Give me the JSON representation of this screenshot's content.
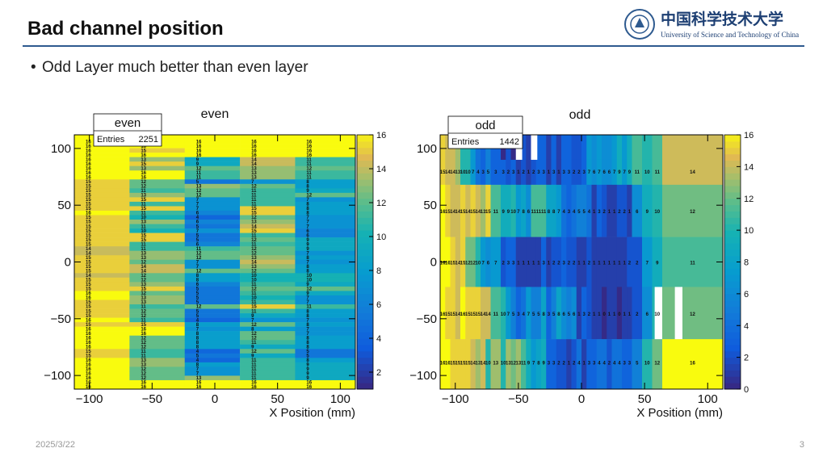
{
  "slide": {
    "title": "Bad channel position",
    "bullet": "Odd Layer much better than even layer",
    "date": "2025/3/22",
    "page_number": "3"
  },
  "logo": {
    "chinese": "中国科学技术大学",
    "english": "University of Science and Technology of China"
  },
  "colors": {
    "accent": "#2e5a8f",
    "bad": "#ffffff"
  },
  "chart_data": [
    {
      "type": "heatmap",
      "title": "even",
      "stats_title": "even",
      "entries_label": "Entries",
      "entries": "2251",
      "xlabel": "X Position (mm)",
      "ylabel": "",
      "xlim": [
        -112,
        112
      ],
      "ylim": [
        -112,
        112
      ],
      "xticks": [
        -100,
        -50,
        0,
        50,
        100
      ],
      "yticks": [
        -100,
        -50,
        0,
        50,
        100
      ],
      "xtick_labels": [
        "−100",
        "−50",
        "0",
        "50",
        "100"
      ],
      "ytick_labels": [
        "−100",
        "−50",
        "0",
        "50",
        "100"
      ],
      "zlim": [
        1,
        16
      ],
      "zticks": [
        2,
        4,
        6,
        8,
        10,
        12,
        14,
        16
      ],
      "columns": [
        {
          "x_range": [
            -112,
            -68
          ],
          "values": [
            16,
            16,
            16,
            16,
            16,
            16,
            16,
            16,
            16,
            16,
            15,
            15,
            15,
            15,
            15,
            15,
            15,
            16,
            15,
            15,
            15,
            15,
            15,
            15,
            15,
            14,
            14,
            15,
            15,
            15,
            15,
            14,
            15,
            15,
            15,
            16,
            16,
            15,
            15,
            15,
            15,
            16,
            15,
            16,
            16,
            16,
            16,
            16,
            15,
            15,
            16,
            16,
            16,
            16,
            16,
            16,
            16
          ]
        },
        {
          "x_range": [
            -68,
            -24
          ],
          "values": [
            16,
            16,
            16,
            15,
            16,
            13,
            15,
            13,
            16,
            16,
            12,
            12,
            11,
            13,
            15,
            11,
            15,
            11,
            10,
            13,
            11,
            10,
            15,
            15,
            11,
            11,
            13,
            13,
            12,
            14,
            14,
            12,
            12,
            13,
            15,
            12,
            13,
            13,
            11,
            12,
            12,
            11,
            15,
            16,
            16,
            12,
            12,
            12,
            11,
            11,
            13,
            13,
            12,
            12,
            12,
            16,
            16
          ]
        },
        {
          "x_range": [
            -24,
            20
          ],
          "values": [
            16,
            16,
            16,
            16,
            16,
            9,
            9,
            12,
            11,
            11,
            5,
            13,
            12,
            12,
            7,
            7,
            7,
            6,
            4,
            6,
            5,
            7,
            5,
            5,
            6,
            11,
            12,
            12,
            7,
            7,
            12,
            8,
            8,
            6,
            5,
            5,
            5,
            5,
            12,
            5,
            5,
            4,
            8,
            7,
            8,
            8,
            8,
            8,
            4,
            5,
            4,
            8,
            7,
            7,
            13,
            16,
            16
          ]
        },
        {
          "x_range": [
            20,
            64
          ],
          "values": [
            16,
            16,
            16,
            16,
            16,
            14,
            14,
            13,
            13,
            13,
            7,
            12,
            11,
            11,
            11,
            11,
            15,
            15,
            12,
            13,
            14,
            15,
            11,
            12,
            11,
            12,
            12,
            13,
            14,
            13,
            12,
            10,
            10,
            11,
            12,
            11,
            10,
            11,
            15,
            11,
            9,
            7,
            12,
            8,
            12,
            12,
            11,
            9,
            12,
            9,
            11,
            11,
            11,
            11,
            11,
            16,
            16
          ]
        },
        {
          "x_range": [
            64,
            112
          ],
          "values": [
            16,
            16,
            16,
            16,
            16,
            11,
            11,
            12,
            11,
            11,
            8,
            8,
            9,
            12,
            7,
            8,
            8,
            8,
            7,
            7,
            7,
            6,
            6,
            9,
            9,
            9,
            7,
            8,
            7,
            8,
            8,
            10,
            10,
            9,
            12,
            9,
            7,
            7,
            11,
            8,
            8,
            7,
            8,
            7,
            7,
            8,
            8,
            8,
            5,
            5,
            8,
            9,
            9,
            9,
            9,
            16,
            16
          ]
        }
      ]
    },
    {
      "type": "heatmap",
      "title": "odd",
      "stats_title": "odd",
      "entries_label": "Entries",
      "entries": "1442",
      "xlabel": "X Position (mm)",
      "ylabel": "",
      "xlim": [
        -112,
        112
      ],
      "ylim": [
        -112,
        112
      ],
      "xticks": [
        -100,
        -50,
        0,
        50,
        100
      ],
      "yticks": [
        -100,
        -50,
        0,
        50,
        100
      ],
      "xtick_labels": [
        "−100",
        "−50",
        "0",
        "50",
        "100"
      ],
      "ytick_labels": [
        "−100",
        "−50",
        "0",
        "50",
        "100"
      ],
      "zlim": [
        0,
        16
      ],
      "zticks": [
        0,
        2,
        4,
        6,
        8,
        10,
        12,
        14,
        16
      ],
      "rows": [
        {
          "y_range": [
            90,
            112
          ],
          "label_y": 80,
          "values": [
            15,
            14,
            14,
            13,
            10,
            10,
            7,
            4,
            3,
            5,
            3,
            0,
            2,
            0,
            1,
            2,
            1,
            2,
            3,
            3,
            1,
            3,
            1,
            3,
            3,
            2,
            2,
            3,
            7,
            6,
            7,
            6,
            6,
            7,
            9,
            7,
            9,
            11,
            10,
            11,
            14
          ]
        },
        {
          "y_range": [
            68,
            90
          ],
          "label_y": 80,
          "values": [
            15,
            14,
            14,
            13,
            10,
            10,
            7,
            4,
            3,
            5,
            3,
            3,
            2,
            3,
            1,
            2,
            1,
            2,
            3,
            3,
            1,
            3,
            1,
            3,
            3,
            2,
            2,
            3,
            7,
            6,
            7,
            6,
            6,
            7,
            9,
            7,
            9,
            11,
            10,
            11,
            14
          ]
        },
        {
          "y_range": [
            22,
            68
          ],
          "label_y": 45,
          "values": [
            16,
            15,
            14,
            14,
            15,
            14,
            15,
            14,
            13,
            15,
            11,
            9,
            9,
            10,
            7,
            8,
            6,
            11,
            11,
            11,
            8,
            8,
            7,
            4,
            3,
            4,
            5,
            5,
            4,
            1,
            3,
            2,
            1,
            1,
            2,
            2,
            1,
            6,
            9,
            10,
            12
          ]
        },
        {
          "y_range": [
            -22,
            22
          ],
          "label_y": 0,
          "values": [
            16,
            16,
            15,
            14,
            15,
            12,
            12,
            10,
            7,
            6,
            7,
            2,
            3,
            3,
            1,
            1,
            1,
            1,
            1,
            3,
            1,
            2,
            2,
            3,
            2,
            2,
            1,
            1,
            2,
            1,
            1,
            1,
            1,
            1,
            1,
            1,
            2,
            2,
            7,
            9,
            11
          ]
        },
        {
          "y_range": [
            -68,
            -22
          ],
          "label_y": -45,
          "values": [
            16,
            15,
            15,
            14,
            16,
            15,
            15,
            15,
            14,
            14,
            11,
            10,
            7,
            5,
            3,
            4,
            7,
            5,
            5,
            8,
            3,
            5,
            8,
            6,
            5,
            6,
            1,
            3,
            2,
            1,
            1,
            0,
            1,
            1,
            0,
            1,
            1,
            2,
            6,
            10,
            12
          ]
        },
        {
          "y_range": [
            -112,
            -68
          ],
          "label_y": -88,
          "values": [
            16,
            16,
            15,
            15,
            15,
            15,
            14,
            13,
            14,
            10,
            13,
            10,
            13,
            12,
            13,
            11,
            9,
            7,
            8,
            9,
            3,
            3,
            2,
            2,
            1,
            2,
            4,
            1,
            3,
            3,
            4,
            4,
            2,
            4,
            4,
            3,
            3,
            5,
            10,
            12,
            16
          ]
        }
      ],
      "x_edges": [
        -112,
        -108,
        -104,
        -100,
        -96,
        -92,
        -88,
        -84,
        -80,
        -76,
        -72,
        -64,
        -60,
        -56,
        -52,
        -48,
        -44,
        -40,
        -36,
        -32,
        -28,
        -24,
        -20,
        -16,
        -12,
        -8,
        -4,
        0,
        4,
        8,
        12,
        16,
        20,
        24,
        28,
        32,
        36,
        40,
        48,
        56,
        64,
        112
      ],
      "dead_regions": [
        {
          "x_range": [
            -52,
            -47
          ],
          "y_range": [
            90,
            112
          ]
        },
        {
          "x_range": [
            -40,
            -35
          ],
          "y_range": [
            90,
            112
          ]
        },
        {
          "x_range": [
            58,
            64
          ],
          "y_range": [
            -68,
            -22
          ]
        },
        {
          "x_range": [
            74,
            80
          ],
          "y_range": [
            -68,
            -22
          ]
        }
      ]
    }
  ]
}
